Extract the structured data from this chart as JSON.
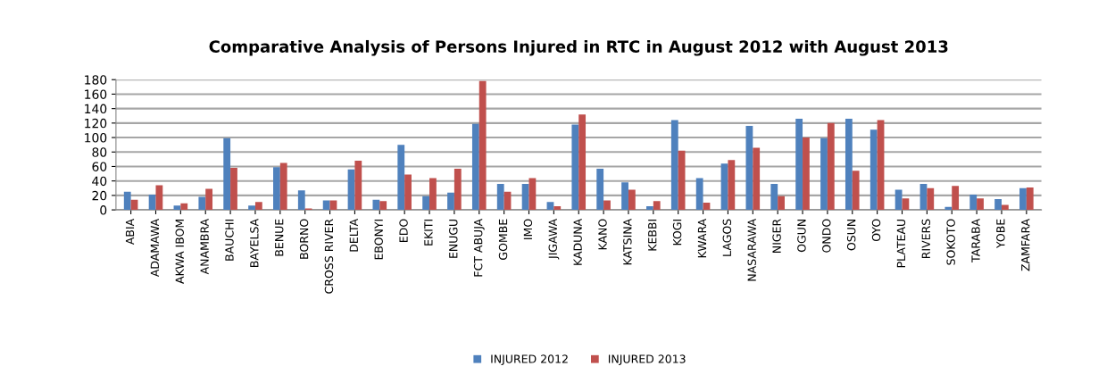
{
  "chart_data": {
    "type": "bar",
    "title": "Comparative Analysis of Persons Injured in RTC in August 2012 with August 2013",
    "categories": [
      "ABIA",
      "ADAMAWA",
      "AKWA IBOM",
      "ANAMBRA",
      "BAUCHI",
      "BAYELSA",
      "BENUE",
      "BORNO",
      "CROSS RIVER",
      "DELTA",
      "EBONYI",
      "EDO",
      "EKITI",
      "ENUGU",
      "FCT ABUJA",
      "GOMBE",
      "IMO",
      "JIGAWA",
      "KADUNA",
      "KANO",
      "KATSINA",
      "KEBBI",
      "KOGI",
      "KWARA",
      "LAGOS",
      "NASARAWA",
      "NIGER",
      "OGUN",
      "ONDO",
      "OSUN",
      "OYO",
      "PLATEAU",
      "RIVERS",
      "SOKOTO",
      "TARABA",
      "YOBE",
      "ZAMFARA"
    ],
    "series": [
      {
        "name": "INJURED 2012",
        "color": "#4f81bd",
        "values": [
          25,
          21,
          6,
          18,
          99,
          6,
          59,
          27,
          13,
          56,
          14,
          90,
          19,
          24,
          119,
          36,
          36,
          11,
          118,
          57,
          38,
          5,
          124,
          44,
          64,
          116,
          36,
          126,
          99,
          126,
          111,
          28,
          36,
          4,
          21,
          15,
          30
        ]
      },
      {
        "name": "INJURED 2013",
        "color": "#c0504d",
        "values": [
          14,
          34,
          9,
          29,
          58,
          11,
          65,
          2,
          13,
          68,
          12,
          49,
          44,
          57,
          178,
          25,
          44,
          5,
          132,
          13,
          28,
          12,
          82,
          10,
          69,
          86,
          19,
          100,
          120,
          54,
          124,
          16,
          30,
          33,
          16,
          7,
          31
        ]
      }
    ],
    "ylim": [
      0,
      180
    ],
    "yticks": [
      0,
      20,
      40,
      60,
      80,
      100,
      120,
      140,
      160,
      180
    ],
    "grid": "y",
    "legend": "bottom"
  }
}
